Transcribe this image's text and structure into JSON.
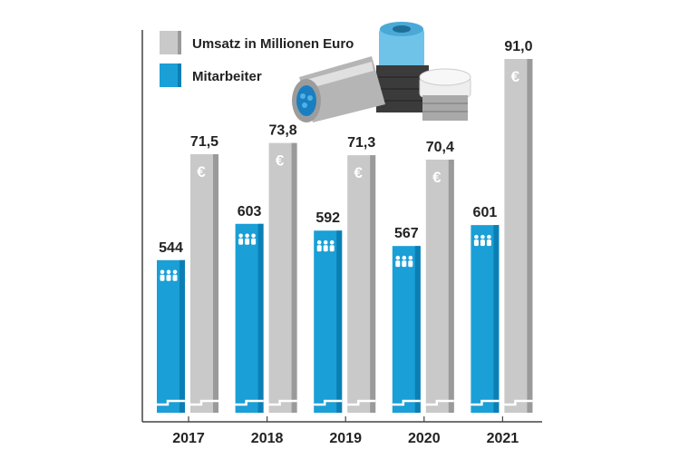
{
  "chart_data": {
    "type": "bar",
    "title": "",
    "categories": [
      "2017",
      "2018",
      "2019",
      "2020",
      "2021"
    ],
    "series": [
      {
        "name": "Mitarbeiter",
        "color": "#1a9fd6",
        "values": [
          544,
          603,
          592,
          567,
          601
        ],
        "labels": [
          "544",
          "603",
          "592",
          "567",
          "601"
        ],
        "ylim": [
          296,
          871
        ],
        "icon": "people-icon"
      },
      {
        "name": "Umsatz in Millionen Euro",
        "color": "#c9c9c9",
        "values": [
          71.5,
          73.8,
          71.3,
          70.4,
          91.0
        ],
        "labels": [
          "71,5",
          "73,8",
          "71,3",
          "70,4",
          "91,0"
        ],
        "ylim": [
          18.6,
          91.0
        ],
        "icon": "euro-icon"
      }
    ],
    "legend": {
      "placement": "top-left",
      "entries": [
        "Umsatz in Millionen Euro",
        "Mitarbeiter"
      ]
    },
    "axis_break": true,
    "grid": false
  }
}
